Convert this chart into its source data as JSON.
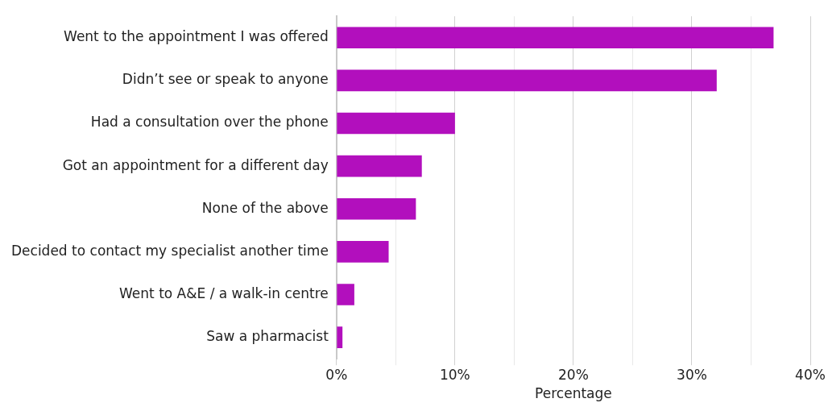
{
  "chart_data": {
    "type": "bar",
    "orientation": "horizontal",
    "xlabel": "Percentage",
    "categories": [
      "Went to the appointment I was offered",
      "Didn’t see or speak to anyone",
      "Had a consultation over the phone",
      "Got an appointment for a different day",
      "None of the above",
      "Decided to contact my specialist another time",
      "Went to A&E / a walk-in centre",
      "Saw a pharmacist"
    ],
    "values": [
      36.9,
      32.1,
      10,
      7.2,
      6.7,
      4.4,
      1.5,
      0.5
    ],
    "color": "#b20fbd",
    "xlim": [
      0,
      40
    ],
    "xticks": [
      {
        "value": 0,
        "label": "0%"
      },
      {
        "value": 5,
        "label": null
      },
      {
        "value": 10,
        "label": "10%"
      },
      {
        "value": 15,
        "label": null
      },
      {
        "value": 20,
        "label": "20%"
      },
      {
        "value": 25,
        "label": null
      },
      {
        "value": 30,
        "label": "30%"
      },
      {
        "value": 35,
        "label": null
      },
      {
        "value": 40,
        "label": "40%"
      }
    ],
    "grid": "x",
    "legend": false
  }
}
